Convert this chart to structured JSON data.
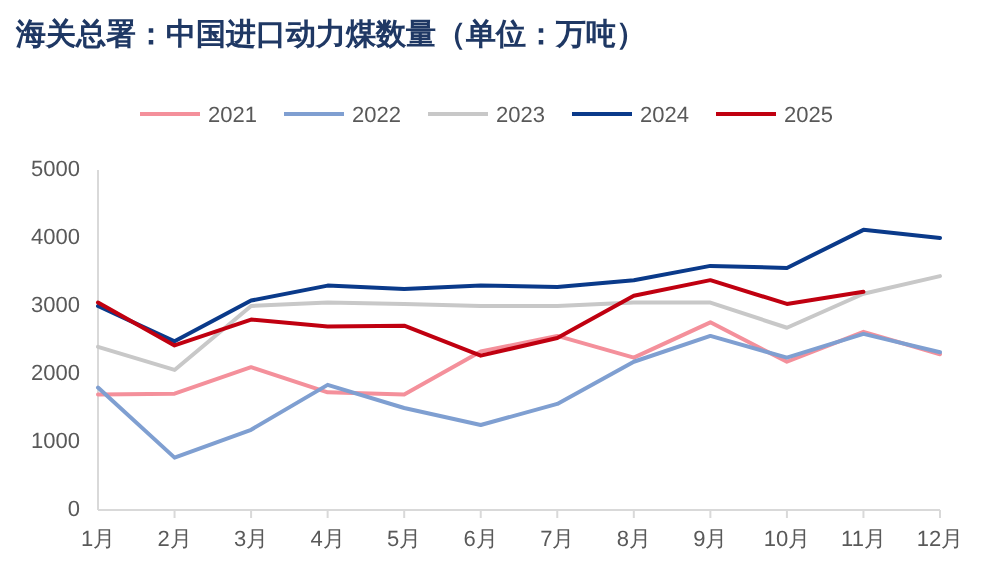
{
  "chart_data": {
    "type": "line",
    "title": "海关总署：中国进口动力煤数量（单位：万吨）",
    "categories": [
      "1月",
      "2月",
      "3月",
      "4月",
      "5月",
      "6月",
      "7月",
      "8月",
      "9月",
      "10月",
      "11月",
      "12月"
    ],
    "series": [
      {
        "name": "2021",
        "color": "#f4909b",
        "values": [
          1700,
          1710,
          2100,
          1730,
          1700,
          2330,
          2560,
          2240,
          2760,
          2180,
          2620,
          2290
        ]
      },
      {
        "name": "2022",
        "color": "#7f9fd1",
        "values": [
          1800,
          770,
          1180,
          1840,
          1500,
          1250,
          1560,
          2180,
          2560,
          2240,
          2590,
          2320
        ]
      },
      {
        "name": "2023",
        "color": "#c8c8c8",
        "values": [
          2400,
          2060,
          3000,
          3050,
          3030,
          3000,
          3000,
          3050,
          3050,
          2680,
          3180,
          3440
        ]
      },
      {
        "name": "2024",
        "color": "#0a3a8a",
        "values": [
          3000,
          2480,
          3080,
          3300,
          3250,
          3300,
          3280,
          3380,
          3590,
          3560,
          4120,
          4000
        ]
      },
      {
        "name": "2025",
        "color": "#c00010",
        "values": [
          3050,
          2420,
          2800,
          2700,
          2710,
          2270,
          2530,
          3150,
          3380,
          3030,
          3210,
          null
        ]
      }
    ],
    "ylim": [
      0,
      5000
    ],
    "yticks": [
      0,
      1000,
      2000,
      3000,
      4000,
      5000
    ],
    "legend": "top",
    "grid": false,
    "marker": "none",
    "line_style": "solid"
  }
}
